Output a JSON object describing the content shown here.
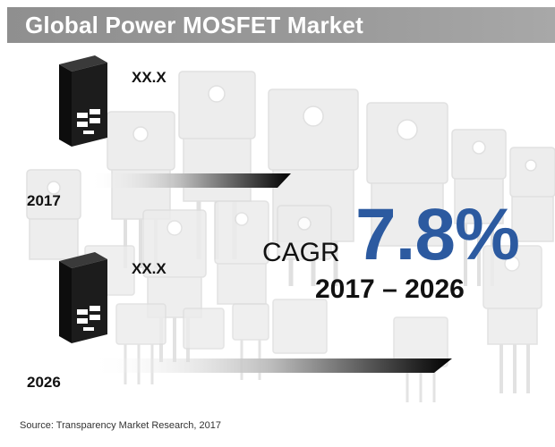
{
  "title": "Global Power MOSFET Market",
  "milestones": [
    {
      "year": "2017",
      "value": "XX.X"
    },
    {
      "year": "2026",
      "value": "XX.X"
    }
  ],
  "cagr": {
    "label": "CAGR",
    "value": "7.8%",
    "period": "2017 – 2026"
  },
  "source": "Source: Transparency Market Research, 2017",
  "colors": {
    "title_bar": "#9a9a9a",
    "accent": "#2c5aa0",
    "chip": "#1a1a1a"
  },
  "icons": [
    "mosfet-chip-icon"
  ]
}
